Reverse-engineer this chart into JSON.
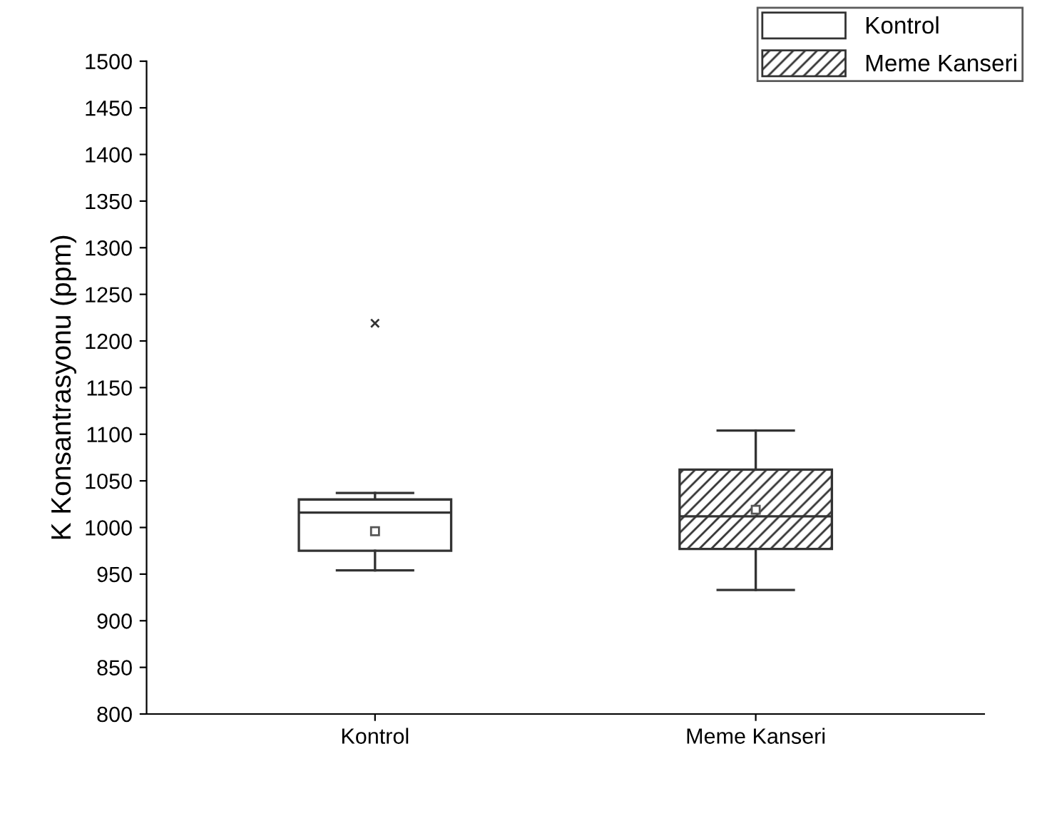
{
  "chart_data": {
    "type": "box",
    "ylabel": "K Konsantrasyonu (ppm)",
    "categories": [
      "Kontrol",
      "Meme Kanseri"
    ],
    "ylim": [
      800,
      1500
    ],
    "yticks": [
      800,
      850,
      900,
      950,
      1000,
      1050,
      1100,
      1150,
      1200,
      1250,
      1300,
      1350,
      1400,
      1450,
      1500
    ],
    "legend": "top right",
    "grid": false,
    "series": [
      {
        "name": "Kontrol",
        "color": "#ffffff",
        "boxes": [
          {
            "low": 954,
            "q1": 975,
            "median": 1016,
            "q3": 1030,
            "high": 1037,
            "mean": 996,
            "outliers": [
              1219
            ]
          },
          null
        ]
      },
      {
        "name": "Meme Kanseri",
        "color": "#333333",
        "boxes": [
          null,
          {
            "low": 933,
            "q1": 977,
            "median": 1012,
            "q3": 1062,
            "high": 1104,
            "mean": 1019
          }
        ]
      }
    ]
  }
}
